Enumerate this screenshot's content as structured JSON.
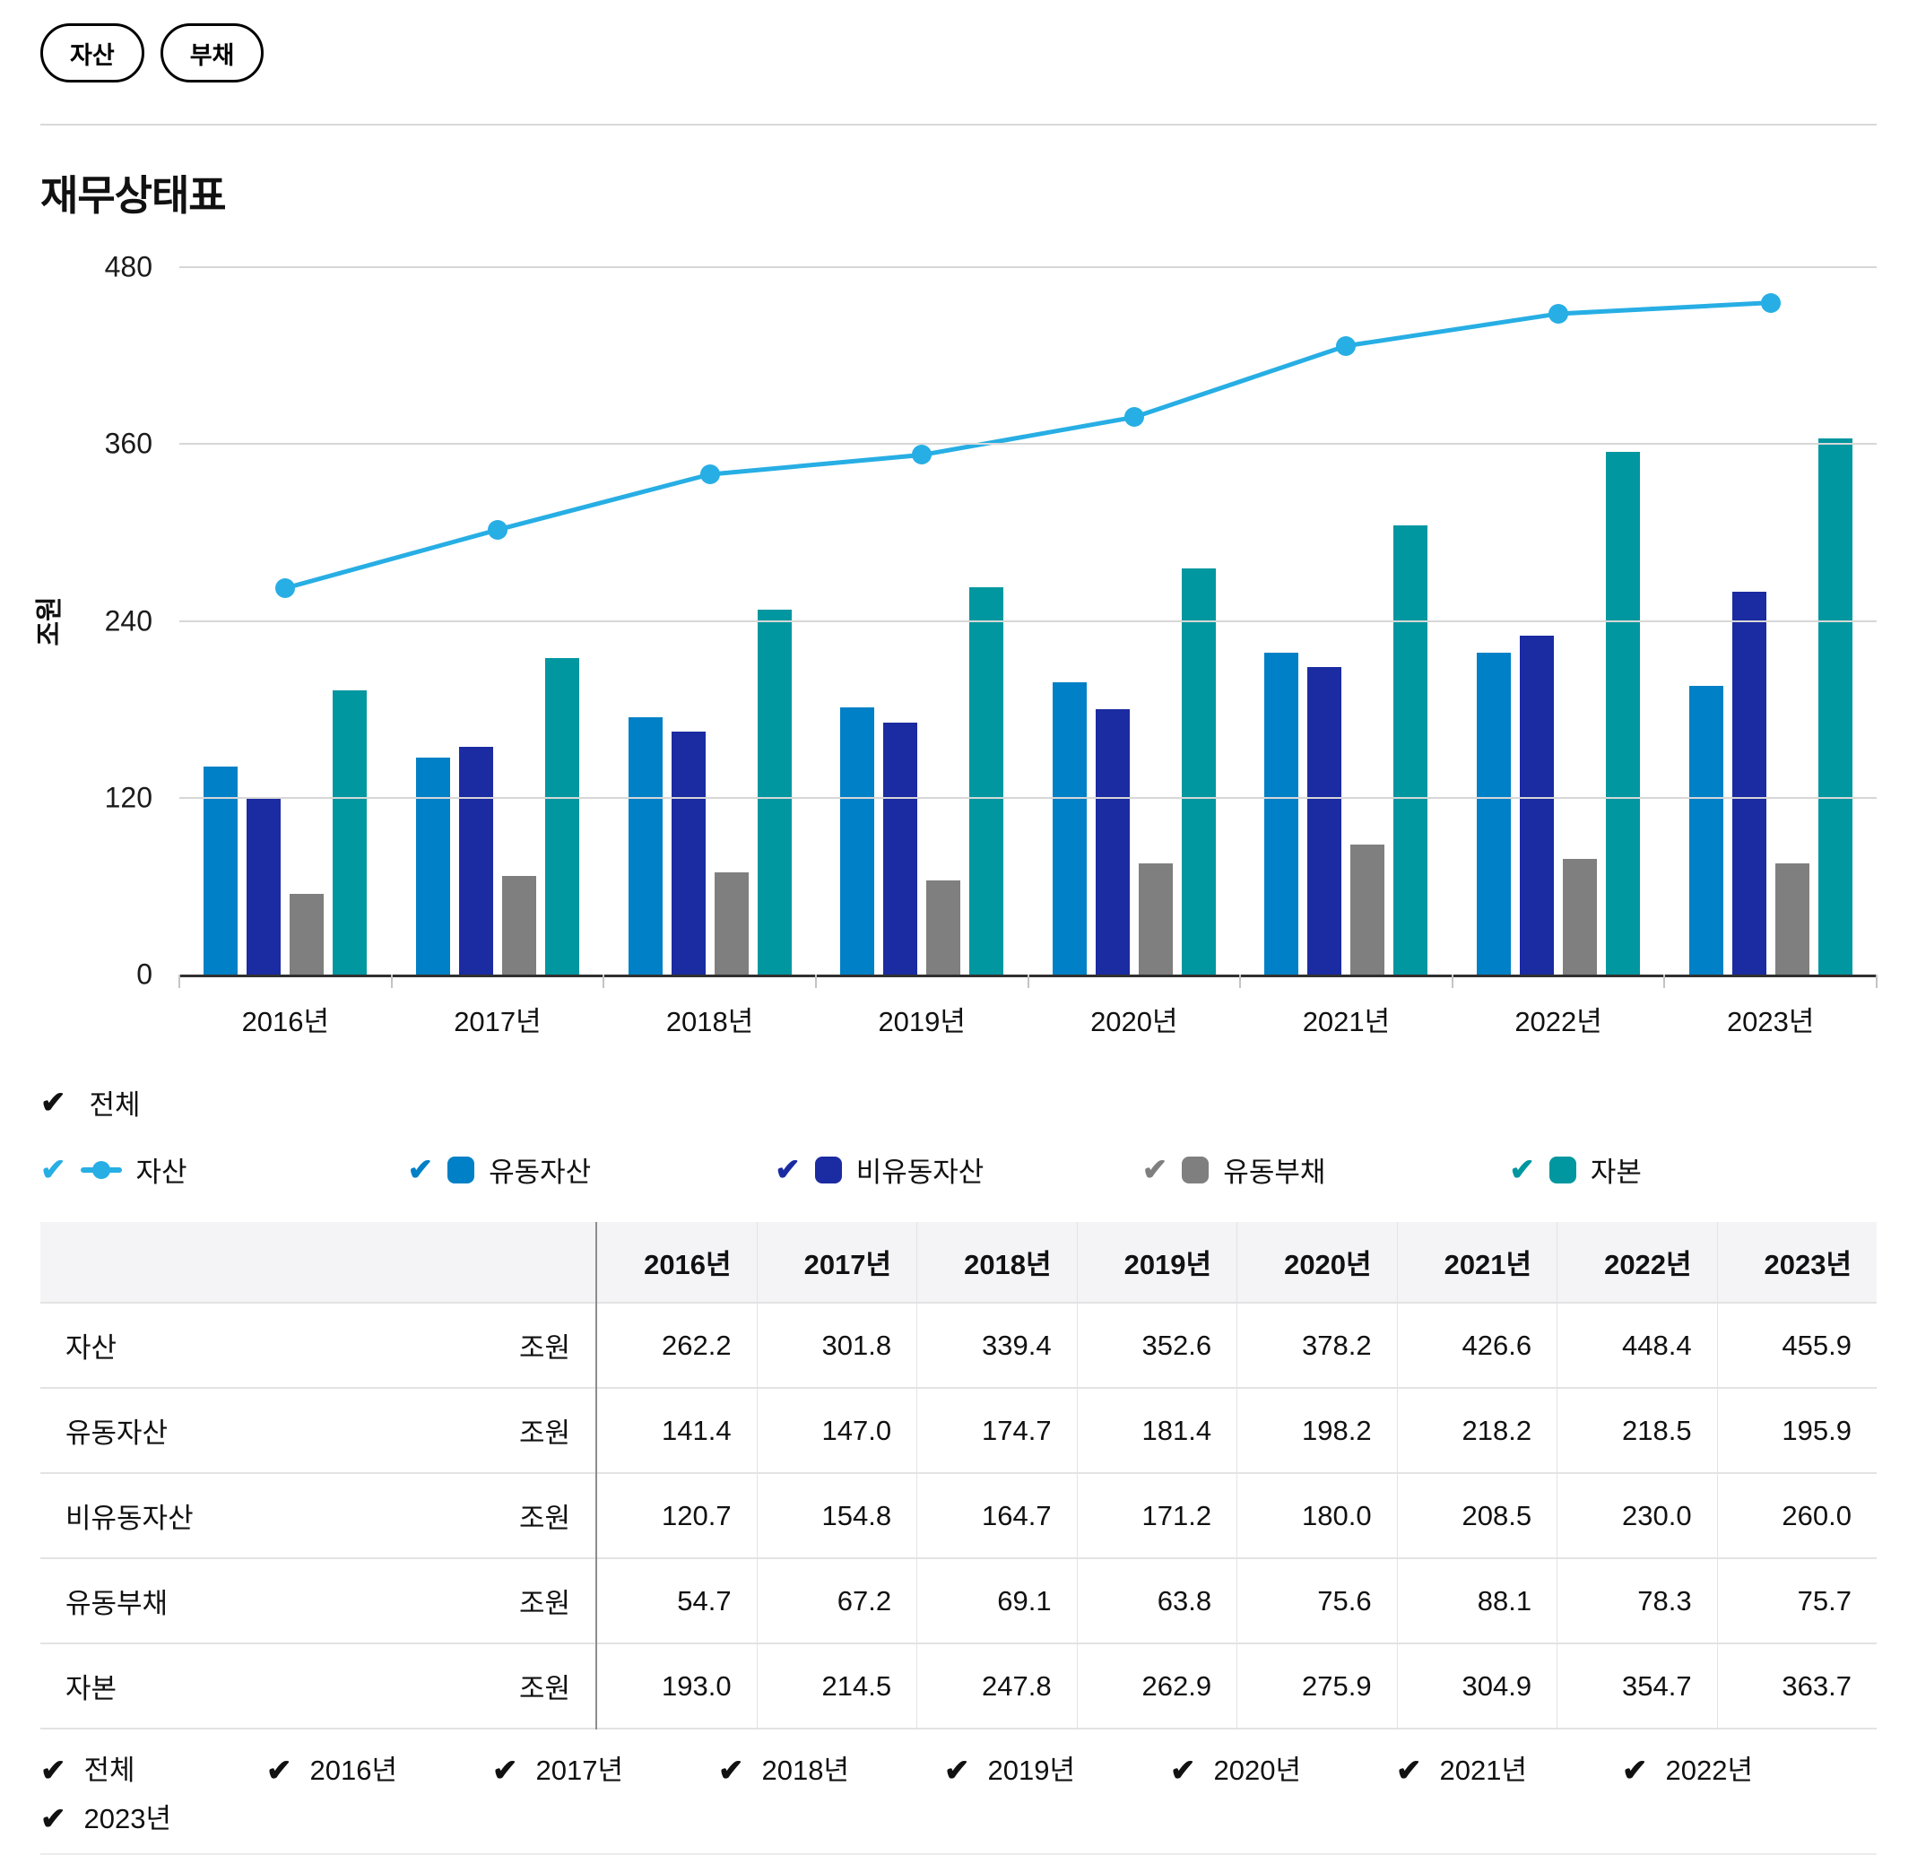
{
  "toolbar": {
    "buttons": [
      {
        "label": "자산"
      },
      {
        "label": "부채"
      }
    ]
  },
  "title": "재무상태표",
  "icons": {
    "check": "✔"
  },
  "colors": {
    "line": "#27aee4",
    "current_assets": "#0080c6",
    "noncurrent_assets": "#1b2ba1",
    "current_liabilities": "#7f7f7f",
    "equity": "#0097a0",
    "axis": "#303030",
    "grid": "#d7d7d7"
  },
  "chart_data": {
    "type": "combo",
    "categories": [
      "2016년",
      "2017년",
      "2018년",
      "2019년",
      "2020년",
      "2021년",
      "2022년",
      "2023년"
    ],
    "ylabel": "조원",
    "ylim": [
      0,
      480
    ],
    "yticks": [
      480,
      360,
      240,
      120,
      0
    ],
    "grid": true,
    "line_series": {
      "name": "자산",
      "type": "line",
      "color": "#27aee4",
      "values": [
        262.2,
        301.8,
        339.4,
        352.6,
        378.2,
        426.6,
        448.4,
        455.9
      ]
    },
    "bar_series": [
      {
        "name": "유동자산",
        "type": "bar",
        "color": "#0080c6",
        "values": [
          141.4,
          147.0,
          174.7,
          181.4,
          198.2,
          218.2,
          218.5,
          195.9
        ]
      },
      {
        "name": "비유동자산",
        "type": "bar",
        "color": "#1b2ba1",
        "values": [
          120.7,
          154.8,
          164.7,
          171.2,
          180.0,
          208.5,
          230.0,
          260.0
        ]
      },
      {
        "name": "유동부채",
        "type": "bar",
        "color": "#7f7f7f",
        "values": [
          54.7,
          67.2,
          69.1,
          63.8,
          75.6,
          88.1,
          78.3,
          75.7
        ]
      },
      {
        "name": "자본",
        "type": "bar",
        "color": "#0097a0",
        "values": [
          193.0,
          214.5,
          247.8,
          262.9,
          275.9,
          304.9,
          354.7,
          363.7
        ]
      }
    ]
  },
  "legend": {
    "all": {
      "label": "전체",
      "checked": true,
      "color": "#111111"
    },
    "items": [
      {
        "label": "자산",
        "marker": "line",
        "color": "#27aee4",
        "checked": true
      },
      {
        "label": "유동자산",
        "marker": "square",
        "color": "#0080c6",
        "checked": true
      },
      {
        "label": "비유동자산",
        "marker": "square",
        "color": "#1b2ba1",
        "checked": true
      },
      {
        "label": "유동부채",
        "marker": "square",
        "color": "#7f7f7f",
        "checked": true
      },
      {
        "label": "자본",
        "marker": "square",
        "color": "#0097a0",
        "checked": true
      }
    ]
  },
  "table": {
    "columns": [
      "2016년",
      "2017년",
      "2018년",
      "2019년",
      "2020년",
      "2021년",
      "2022년",
      "2023년"
    ],
    "rows": [
      {
        "label": "자산",
        "unit": "조원",
        "values": [
          "262.2",
          "301.8",
          "339.4",
          "352.6",
          "378.2",
          "426.6",
          "448.4",
          "455.9"
        ]
      },
      {
        "label": "유동자산",
        "unit": "조원",
        "values": [
          "141.4",
          "147.0",
          "174.7",
          "181.4",
          "198.2",
          "218.2",
          "218.5",
          "195.9"
        ]
      },
      {
        "label": "비유동자산",
        "unit": "조원",
        "values": [
          "120.7",
          "154.8",
          "164.7",
          "171.2",
          "180.0",
          "208.5",
          "230.0",
          "260.0"
        ]
      },
      {
        "label": "유동부채",
        "unit": "조원",
        "values": [
          "54.7",
          "67.2",
          "69.1",
          "63.8",
          "75.6",
          "88.1",
          "78.3",
          "75.7"
        ]
      },
      {
        "label": "자본",
        "unit": "조원",
        "values": [
          "193.0",
          "214.5",
          "247.8",
          "262.9",
          "275.9",
          "304.9",
          "354.7",
          "363.7"
        ]
      }
    ]
  },
  "filters": {
    "items": [
      "전체",
      "2016년",
      "2017년",
      "2018년",
      "2019년",
      "2020년",
      "2021년",
      "2022년",
      "2023년"
    ],
    "checked": [
      true,
      true,
      true,
      true,
      true,
      true,
      true,
      true,
      true
    ]
  }
}
